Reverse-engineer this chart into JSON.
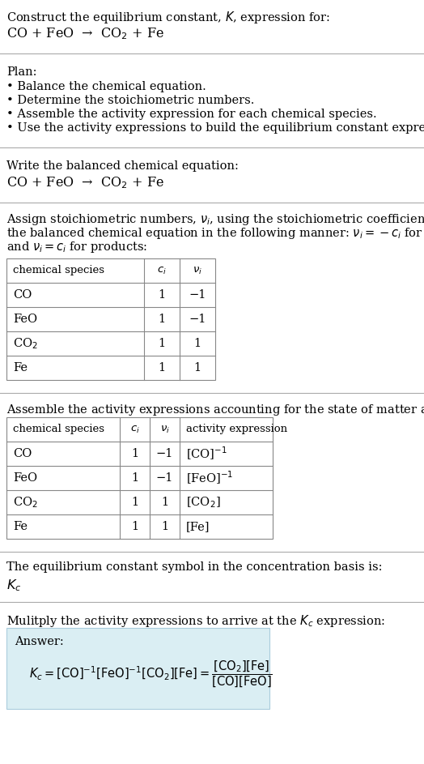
{
  "title_line1": "Construct the equilibrium constant, $K$, expression for:",
  "title_line2": "CO + FeO  →  CO$_2$ + Fe",
  "plan_header": "Plan:",
  "plan_items": [
    "• Balance the chemical equation.",
    "• Determine the stoichiometric numbers.",
    "• Assemble the activity expression for each chemical species.",
    "• Use the activity expressions to build the equilibrium constant expression."
  ],
  "section2_header": "Write the balanced chemical equation:",
  "section2_eq": "CO + FeO  →  CO$_2$ + Fe",
  "section3_header_parts": [
    "Assign stoichiometric numbers, $\\nu_i$, using the stoichiometric coefficients, $c_i$, from",
    "the balanced chemical equation in the following manner: $\\nu_i = -c_i$ for reactants",
    "and $\\nu_i = c_i$ for products:"
  ],
  "table1_headers": [
    "chemical species",
    "$c_i$",
    "$\\nu_i$"
  ],
  "table1_rows": [
    [
      "CO",
      "1",
      "−1"
    ],
    [
      "FeO",
      "1",
      "−1"
    ],
    [
      "CO$_2$",
      "1",
      "1"
    ],
    [
      "Fe",
      "1",
      "1"
    ]
  ],
  "section4_header": "Assemble the activity expressions accounting for the state of matter and $\\nu_i$:",
  "table2_headers": [
    "chemical species",
    "$c_i$",
    "$\\nu_i$",
    "activity expression"
  ],
  "table2_rows": [
    [
      "CO",
      "1",
      "−1",
      "[CO]$^{-1}$"
    ],
    [
      "FeO",
      "1",
      "−1",
      "[FeO]$^{-1}$"
    ],
    [
      "CO$_2$",
      "1",
      "1",
      "[CO$_2$]"
    ],
    [
      "Fe",
      "1",
      "1",
      "[Fe]"
    ]
  ],
  "section5_text": "The equilibrium constant symbol in the concentration basis is:",
  "section5_symbol": "$K_c$",
  "section6_header": "Mulitply the activity expressions to arrive at the $K_c$ expression:",
  "answer_label": "Answer:",
  "answer_box_color": "#daeef3",
  "bg_color": "#ffffff",
  "text_color": "#000000",
  "separator_color": "#aaaaaa",
  "table_border_color": "#888888",
  "font_size": 10.5,
  "small_font": 9.5,
  "eq_font_size": 11.5
}
